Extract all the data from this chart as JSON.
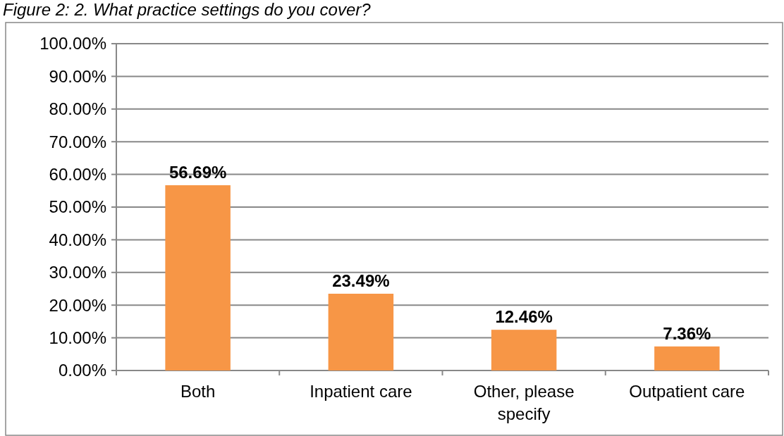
{
  "chart_data": {
    "type": "bar",
    "title": "Figure 2: 2. What practice settings do you cover?",
    "categories": [
      "Both",
      "Inpatient care",
      "Other, please specify",
      "Outpatient care"
    ],
    "values": [
      56.69,
      23.49,
      12.46,
      7.36
    ],
    "value_labels": [
      "56.69%",
      "23.49%",
      "12.46%",
      "7.36%"
    ],
    "color": "#f79646",
    "ylim": [
      0,
      100
    ],
    "yticks": [
      {
        "value": 0,
        "label": "0.00%"
      },
      {
        "value": 10,
        "label": "10.00%"
      },
      {
        "value": 20,
        "label": "20.00%"
      },
      {
        "value": 30,
        "label": "30.00%"
      },
      {
        "value": 40,
        "label": "40.00%"
      },
      {
        "value": 50,
        "label": "50.00%"
      },
      {
        "value": 60,
        "label": "60.00%"
      },
      {
        "value": 70,
        "label": "70.00%"
      },
      {
        "value": 80,
        "label": "80.00%"
      },
      {
        "value": 90,
        "label": "90.00%"
      },
      {
        "value": 100,
        "label": "100.00%"
      }
    ],
    "grid": "y"
  }
}
